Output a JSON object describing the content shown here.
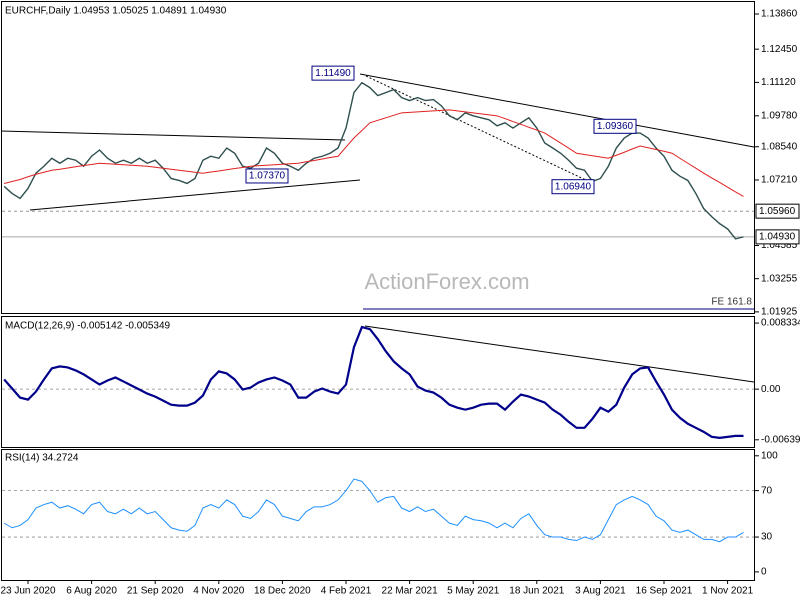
{
  "chart_data": [
    {
      "type": "line",
      "title": "EURCHF,Daily 1.04953 1.05025 1.04891 1.04930",
      "watermark": "ActionForex.com",
      "fe_label": "FE 161.8",
      "ylim": [
        1.0188,
        1.1434
      ],
      "yticks": [
        {
          "value": 1.1386,
          "label": "1.13860"
        },
        {
          "value": 1.1245,
          "label": "1.12450"
        },
        {
          "value": 1.1112,
          "label": "1.11120"
        },
        {
          "value": 1.0978,
          "label": "1.09780"
        },
        {
          "value": 1.0854,
          "label": "1.08540"
        },
        {
          "value": 1.0721,
          "label": "1.07210"
        },
        {
          "value": 1.04585,
          "label": "1.04585"
        },
        {
          "value": 1.03255,
          "label": "1.03255"
        },
        {
          "value": 1.01925,
          "label": "1.01925"
        }
      ],
      "levels": [
        {
          "value": 1.0596,
          "label": "1.05960"
        },
        {
          "value": 1.0493,
          "label": "1.04930"
        }
      ],
      "annotations": [
        {
          "value": 1.1149,
          "label": "1.11490"
        },
        {
          "value": 1.0936,
          "label": "1.09360"
        },
        {
          "value": 1.0737,
          "label": "1.07370"
        },
        {
          "value": 1.0694,
          "label": "1.06940"
        }
      ],
      "series": [
        {
          "color": "#2f4f4f",
          "values": [
            1.0695,
            1.0667,
            1.0647,
            1.0687,
            1.0748,
            1.0776,
            1.0808,
            1.0788,
            1.0808,
            1.08,
            1.0776,
            1.0816,
            1.0841,
            1.0808,
            1.0788,
            1.08,
            1.0788,
            1.0808,
            1.0788,
            1.08,
            1.0768,
            1.0727,
            1.0719,
            1.0707,
            1.0727,
            1.08,
            1.0816,
            1.0808,
            1.0849,
            1.0828,
            1.0776,
            1.0768,
            1.0788,
            1.0849,
            1.0828,
            1.0788,
            1.0776,
            1.076,
            1.0788,
            1.0808,
            1.0816,
            1.0828,
            1.0849,
            1.0929,
            1.1071,
            1.1111,
            1.1091,
            1.1059,
            1.1071,
            1.1083,
            1.1051,
            1.1039,
            1.1051,
            1.1039,
            1.1043,
            1.1018,
            1.0978,
            1.0962,
            1.099,
            1.0978,
            1.097,
            1.0962,
            1.0938,
            1.095,
            1.0929,
            1.095,
            1.097,
            1.0929,
            1.0869,
            1.0849,
            1.0828,
            1.08,
            1.0768,
            1.076,
            1.0715,
            1.0727,
            1.0776,
            1.0849,
            1.0889,
            1.0909,
            1.0909,
            1.0889,
            1.0849,
            1.0816,
            1.076,
            1.0736,
            1.0719,
            1.0667,
            1.0606,
            1.0574,
            1.0546,
            1.0525,
            1.0485,
            1.0493
          ]
        },
        {
          "color": "#e02020",
          "values": [
            1.0707,
            1.0715,
            1.0723,
            1.0734,
            1.0744,
            1.0752,
            1.076,
            1.0764,
            1.0769,
            1.0774,
            1.0779,
            1.0783,
            1.0788,
            1.0786,
            1.0784,
            1.0782,
            1.078,
            1.0778,
            1.0776,
            1.0772,
            1.0768,
            1.0764,
            1.076,
            1.0756,
            1.0752,
            1.0748,
            1.0753,
            1.0757,
            1.0762,
            1.0767,
            1.0771,
            1.0776,
            1.0778,
            1.078,
            1.0782,
            1.0784,
            1.0786,
            1.0788,
            1.0794,
            1.0799,
            1.0805,
            1.0811,
            1.0816,
            1.0853,
            1.0889,
            1.0919,
            1.095,
            1.096,
            1.097,
            1.098,
            1.099,
            1.0992,
            1.0994,
            1.0996,
            1.0998,
            1.1,
            1.1002,
            1.0998,
            1.0994,
            1.099,
            1.0986,
            1.0982,
            1.0978,
            1.0967,
            1.0955,
            1.0944,
            1.0932,
            1.0921,
            1.0909,
            1.0889,
            1.0869,
            1.0849,
            1.0828,
            1.0823,
            1.0818,
            1.0813,
            1.0808,
            1.082,
            1.0832,
            1.0845,
            1.0857,
            1.085,
            1.0843,
            1.0836,
            1.0828,
            1.0808,
            1.0788,
            1.0768,
            1.0748,
            1.0729,
            1.0711,
            1.0692,
            1.0673,
            1.0655
          ]
        }
      ]
    },
    {
      "type": "line",
      "title": "MACD(12,26,9) -0.005142 -0.005349",
      "ylim": [
        -0.0073,
        0.0091
      ],
      "yticks": [
        0.008334,
        {
          "value": 0,
          "label": "0.00"
        },
        -0.006393
      ],
      "levels": [
        0
      ],
      "series": [
        {
          "color": "#00008b",
          "values": [
            0.00122,
            8e-05,
            -0.00107,
            -0.00132,
            -0.00031,
            0.00122,
            0.00262,
            0.00287,
            0.00274,
            0.00236,
            0.00186,
            0.00122,
            0.00058,
            0.00109,
            0.00147,
            0.00097,
            0.00046,
            -5e-05,
            -0.00056,
            -0.00094,
            -0.00145,
            -0.00196,
            -0.00208,
            -0.00208,
            -0.0017,
            -0.00081,
            0.00122,
            0.00224,
            0.00198,
            0.00122,
            -5e-05,
            0.0002,
            0.00084,
            0.00122,
            0.00147,
            0.00109,
            0.00058,
            -0.00107,
            -0.00107,
            -0.00031,
            8e-05,
            -0.00031,
            -0.00056,
            0.00058,
            0.00529,
            0.00783,
            0.00757,
            0.0063,
            0.00478,
            0.00351,
            0.00262,
            0.00186,
            0.00033,
            -0.00018,
            -0.00043,
            -0.00107,
            -0.00196,
            -0.00234,
            -0.00259,
            -0.00234,
            -0.00196,
            -0.00183,
            -0.00183,
            -0.00259,
            -0.00158,
            -0.00069,
            -0.00094,
            -0.00132,
            -0.0017,
            -0.00259,
            -0.00323,
            -0.00412,
            -0.00488,
            -0.00488,
            -0.00374,
            -0.00234,
            -0.00285,
            -0.00196,
            0.0002,
            0.00186,
            0.00262,
            0.00274,
            0.00097,
            -0.00069,
            -0.00259,
            -0.00361,
            -0.00437,
            -0.00488,
            -0.00539,
            -0.00602,
            -0.00615,
            -0.00602,
            -0.0059,
            -0.0059
          ]
        }
      ]
    },
    {
      "type": "line",
      "title": "RSI(14) 34.2724",
      "ylim": [
        -7,
        105
      ],
      "yticks": [
        100,
        70,
        30,
        0
      ],
      "levels": [
        70,
        30
      ],
      "categories": [
        null,
        null,
        null,
        "23 Jun 2020",
        null,
        null,
        null,
        null,
        null,
        null,
        null,
        "6 Aug 2020",
        null,
        null,
        null,
        null,
        null,
        null,
        null,
        "21 Sep 2020",
        null,
        null,
        null,
        null,
        null,
        null,
        null,
        "4 Nov 2020",
        null,
        null,
        null,
        null,
        null,
        null,
        null,
        "18 Dec 2020",
        null,
        null,
        null,
        null,
        null,
        null,
        null,
        "4 Feb 2021",
        null,
        null,
        null,
        null,
        null,
        null,
        null,
        "22 Mar 2021",
        null,
        null,
        null,
        null,
        null,
        null,
        null,
        "5 May 2021",
        null,
        null,
        null,
        null,
        null,
        null,
        null,
        "18 Jun 2021",
        null,
        null,
        null,
        null,
        null,
        null,
        null,
        "3 Aug 2021",
        null,
        null,
        null,
        null,
        null,
        null,
        null,
        "16 Sep 2021",
        null,
        null,
        null,
        null,
        null,
        null,
        null,
        "1 Nov 2021",
        null,
        null
      ],
      "series": [
        {
          "color": "#1e90ff",
          "values": [
            42,
            38,
            40,
            45,
            55,
            58,
            60,
            55,
            57,
            54,
            50,
            58,
            60,
            52,
            50,
            54,
            50,
            55,
            50,
            52,
            45,
            38,
            36,
            35,
            40,
            55,
            58,
            55,
            62,
            58,
            48,
            46,
            52,
            62,
            58,
            48,
            46,
            44,
            52,
            56,
            56,
            58,
            62,
            70,
            80,
            78,
            70,
            60,
            64,
            65,
            55,
            52,
            56,
            52,
            54,
            48,
            42,
            40,
            48,
            45,
            44,
            42,
            38,
            42,
            38,
            46,
            50,
            40,
            32,
            30,
            30,
            28,
            27,
            30,
            28,
            32,
            45,
            58,
            62,
            65,
            62,
            58,
            48,
            44,
            36,
            34,
            36,
            32,
            28,
            28,
            26,
            30,
            30,
            34
          ]
        }
      ]
    }
  ]
}
